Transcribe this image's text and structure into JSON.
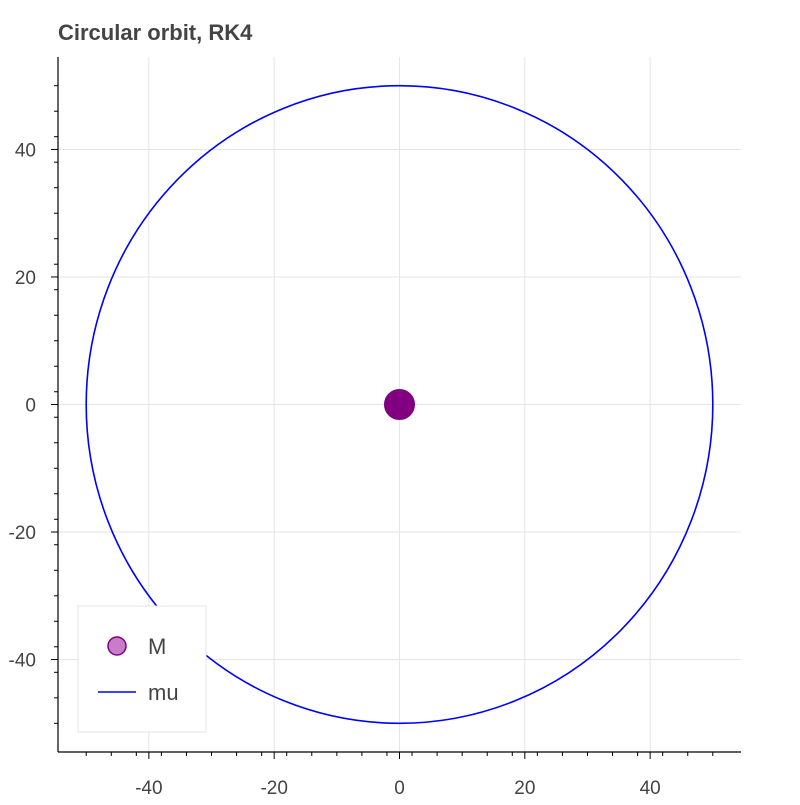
{
  "chart_data": {
    "type": "line",
    "title": "Circular orbit, RK4",
    "xlabel": "",
    "ylabel": "",
    "xlim": [
      -54.5,
      54.5
    ],
    "ylim": [
      -54.5,
      54.5
    ],
    "xticks": [
      -40,
      -20,
      0,
      20,
      40
    ],
    "yticks": [
      -40,
      -20,
      0,
      20,
      40
    ],
    "xtick_labels": [
      "-40",
      "-20",
      "0",
      "20",
      "40"
    ],
    "ytick_labels": [
      "-40",
      "-20",
      "0",
      "20",
      "40"
    ],
    "grid": true,
    "legend_position": "bottom-left",
    "series": [
      {
        "name": "M",
        "kind": "scatter",
        "points": [
          {
            "x": 0,
            "y": 0
          }
        ],
        "fill_color": "#800080",
        "legend_fill_color": "#c87dc8"
      },
      {
        "name": "mu",
        "kind": "line",
        "shape": "circle",
        "center": {
          "x": 0,
          "y": 0
        },
        "radius": 50,
        "color": "#0000ff"
      }
    ]
  }
}
